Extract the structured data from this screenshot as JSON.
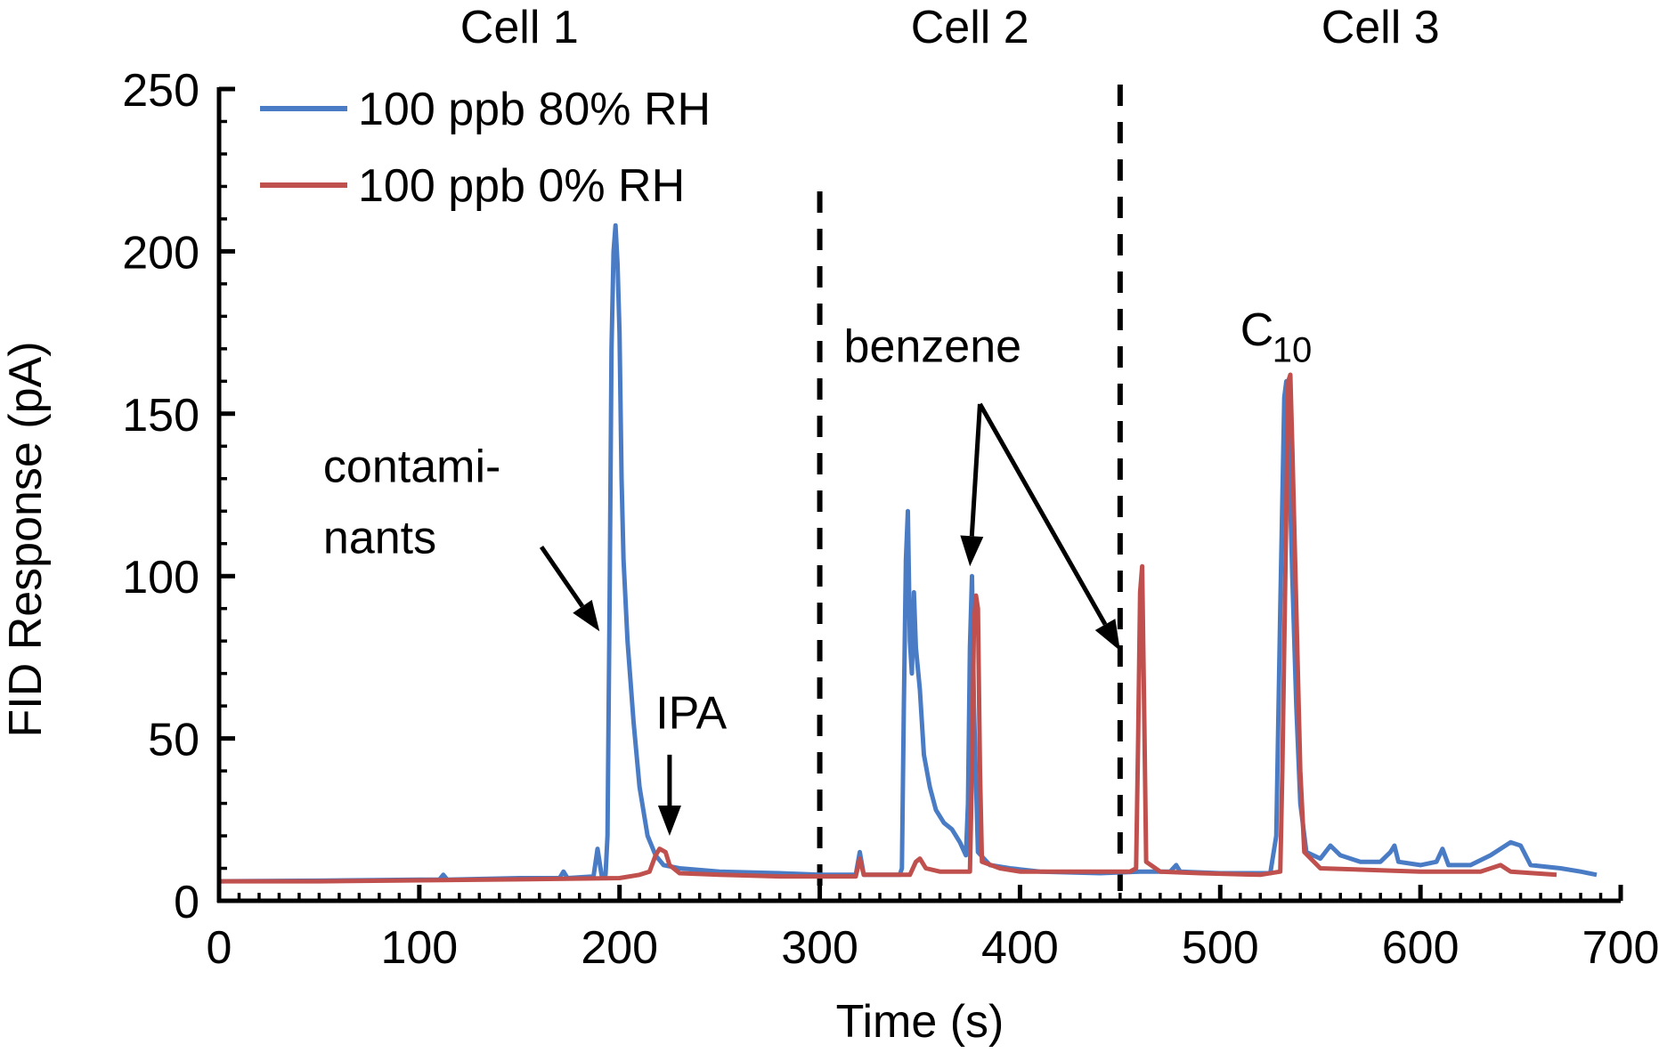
{
  "chart_data": {
    "type": "line",
    "title": "",
    "xlabel": "Time (s)",
    "ylabel": "FID Response (pA)",
    "xlim": [
      0,
      700
    ],
    "ylim": [
      0,
      250
    ],
    "xticks": [
      0,
      100,
      200,
      300,
      400,
      500,
      600,
      700
    ],
    "yticks": [
      0,
      50,
      100,
      150,
      200,
      250
    ],
    "cell_labels": [
      {
        "text": "Cell 1",
        "x": 150
      },
      {
        "text": "Cell 2",
        "x": 375
      },
      {
        "text": "Cell 3",
        "x": 580
      }
    ],
    "dividers": [
      300,
      450
    ],
    "series": [
      {
        "name": "100 ppb 80% RH",
        "color": "#4a7cc5",
        "points": [
          [
            0,
            6
          ],
          [
            50,
            6.2
          ],
          [
            100,
            6.5
          ],
          [
            110,
            6.5
          ],
          [
            112,
            8
          ],
          [
            114,
            6.5
          ],
          [
            150,
            7
          ],
          [
            170,
            7
          ],
          [
            172,
            9
          ],
          [
            174,
            7
          ],
          [
            187,
            7.5
          ],
          [
            189,
            16
          ],
          [
            191,
            8
          ],
          [
            193,
            8
          ],
          [
            194,
            20
          ],
          [
            195,
            90
          ],
          [
            196,
            170
          ],
          [
            197,
            200
          ],
          [
            198,
            208
          ],
          [
            199,
            196
          ],
          [
            200,
            175
          ],
          [
            201,
            130
          ],
          [
            202,
            105
          ],
          [
            204,
            80
          ],
          [
            207,
            55
          ],
          [
            210,
            35
          ],
          [
            214,
            20
          ],
          [
            218,
            14
          ],
          [
            222,
            11
          ],
          [
            230,
            10
          ],
          [
            250,
            9
          ],
          [
            280,
            8.5
          ],
          [
            300,
            8
          ],
          [
            318,
            8
          ],
          [
            320,
            15
          ],
          [
            322,
            8
          ],
          [
            340,
            8
          ],
          [
            341,
            10
          ],
          [
            342,
            60
          ],
          [
            343,
            105
          ],
          [
            344,
            120
          ],
          [
            345,
            80
          ],
          [
            346,
            70
          ],
          [
            347,
            95
          ],
          [
            348,
            78
          ],
          [
            350,
            65
          ],
          [
            352,
            45
          ],
          [
            355,
            35
          ],
          [
            358,
            28
          ],
          [
            362,
            24
          ],
          [
            366,
            22
          ],
          [
            370,
            18
          ],
          [
            373,
            14
          ],
          [
            374,
            30
          ],
          [
            375,
            78
          ],
          [
            376,
            100
          ],
          [
            377,
            60
          ],
          [
            379,
            15
          ],
          [
            385,
            11
          ],
          [
            395,
            10
          ],
          [
            410,
            9
          ],
          [
            440,
            8.5
          ],
          [
            460,
            9
          ],
          [
            475,
            9
          ],
          [
            478,
            11
          ],
          [
            480,
            9
          ],
          [
            500,
            8.5
          ],
          [
            525,
            8.5
          ],
          [
            528,
            20
          ],
          [
            530,
            90
          ],
          [
            532,
            155
          ],
          [
            533,
            160
          ],
          [
            534,
            145
          ],
          [
            536,
            100
          ],
          [
            538,
            60
          ],
          [
            540,
            30
          ],
          [
            543,
            15
          ],
          [
            550,
            13
          ],
          [
            555,
            17
          ],
          [
            560,
            14
          ],
          [
            570,
            12
          ],
          [
            580,
            12
          ],
          [
            585,
            15
          ],
          [
            587,
            17
          ],
          [
            589,
            12
          ],
          [
            600,
            11
          ],
          [
            608,
            12
          ],
          [
            611,
            16
          ],
          [
            614,
            11
          ],
          [
            625,
            11
          ],
          [
            635,
            14
          ],
          [
            645,
            18
          ],
          [
            650,
            17
          ],
          [
            655,
            11
          ],
          [
            670,
            10
          ],
          [
            680,
            9
          ],
          [
            688,
            8
          ]
        ]
      },
      {
        "name": "100 ppb 0% RH",
        "color": "#c0504d",
        "points": [
          [
            0,
            6
          ],
          [
            50,
            6
          ],
          [
            100,
            6.3
          ],
          [
            150,
            6.6
          ],
          [
            200,
            7
          ],
          [
            210,
            8
          ],
          [
            215,
            9
          ],
          [
            218,
            14
          ],
          [
            220,
            16
          ],
          [
            223,
            15
          ],
          [
            225,
            11
          ],
          [
            230,
            8.5
          ],
          [
            250,
            8
          ],
          [
            280,
            7.5
          ],
          [
            300,
            7.5
          ],
          [
            318,
            7.5
          ],
          [
            320,
            13
          ],
          [
            322,
            8
          ],
          [
            345,
            8
          ],
          [
            348,
            12
          ],
          [
            350,
            13
          ],
          [
            353,
            10
          ],
          [
            360,
            9
          ],
          [
            375,
            9
          ],
          [
            376,
            40
          ],
          [
            377,
            85
          ],
          [
            378,
            94
          ],
          [
            379,
            90
          ],
          [
            380,
            40
          ],
          [
            381,
            12
          ],
          [
            390,
            10
          ],
          [
            400,
            9
          ],
          [
            440,
            9
          ],
          [
            455,
            9
          ],
          [
            458,
            10
          ],
          [
            459,
            50
          ],
          [
            460,
            95
          ],
          [
            461,
            103
          ],
          [
            462,
            60
          ],
          [
            463,
            12
          ],
          [
            470,
            9
          ],
          [
            490,
            8.5
          ],
          [
            520,
            8
          ],
          [
            530,
            9
          ],
          [
            531,
            40
          ],
          [
            533,
            120
          ],
          [
            534,
            160
          ],
          [
            535,
            162
          ],
          [
            536,
            140
          ],
          [
            538,
            90
          ],
          [
            540,
            40
          ],
          [
            542,
            15
          ],
          [
            550,
            10
          ],
          [
            600,
            9
          ],
          [
            630,
            9
          ],
          [
            640,
            11
          ],
          [
            645,
            9
          ],
          [
            668,
            8
          ]
        ]
      }
    ],
    "annotations": [
      {
        "text": "contami-",
        "x": 52,
        "y": 129
      },
      {
        "text": "nants",
        "x": 52,
        "y": 107
      },
      {
        "text": "IPA",
        "x": 218,
        "y": 53
      },
      {
        "text": "benzene",
        "x": 312,
        "y": 166
      },
      {
        "text": "C",
        "x": 510,
        "y": 171
      },
      {
        "text": "10",
        "x": 526,
        "y": 166
      }
    ],
    "arrows": [
      {
        "from": [
          161,
          109
        ],
        "to": [
          190,
          83
        ]
      },
      {
        "from": [
          225,
          45
        ],
        "to": [
          225,
          20
        ]
      },
      {
        "from": [
          380,
          153
        ],
        "to": [
          375,
          103
        ]
      },
      {
        "from": [
          380,
          153
        ],
        "to": [
          450,
          77
        ]
      }
    ]
  }
}
